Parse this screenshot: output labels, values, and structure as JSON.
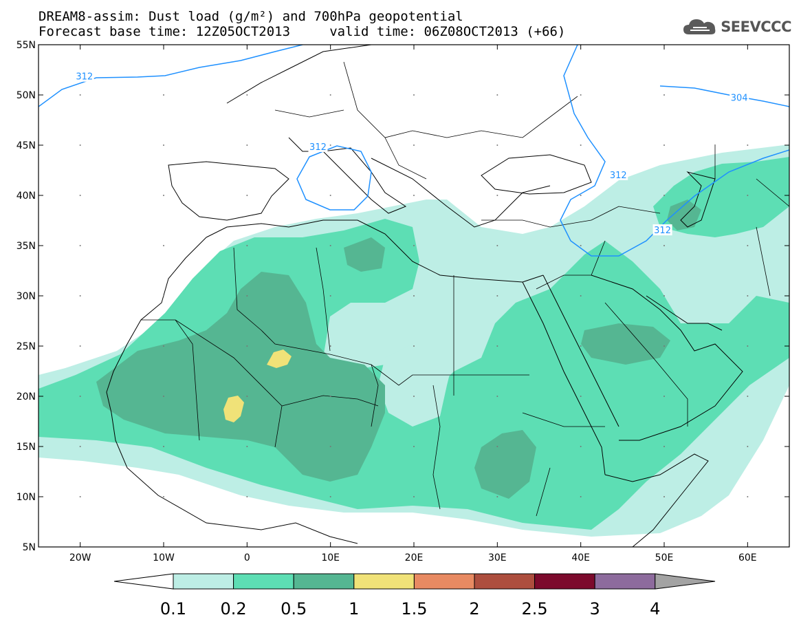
{
  "header": {
    "title_line1": "DREAM8-assim: Dust load (g/m²) and 700hPa geopotential",
    "title_line2": "Forecast base time: 12Z05OCT2013     valid time: 06Z08OCT2013 (+66)"
  },
  "logo": {
    "text": "SEEVCCC",
    "icon": "cloud-logo-icon"
  },
  "map": {
    "lon_range": [
      -25,
      65
    ],
    "lat_range": [
      5,
      55
    ],
    "lon_ticks": [
      {
        "value": -20,
        "label": "20W"
      },
      {
        "value": -10,
        "label": "10W"
      },
      {
        "value": 0,
        "label": "0"
      },
      {
        "value": 10,
        "label": "10E"
      },
      {
        "value": 20,
        "label": "20E"
      },
      {
        "value": 30,
        "label": "30E"
      },
      {
        "value": 40,
        "label": "40E"
      },
      {
        "value": 50,
        "label": "50E"
      },
      {
        "value": 60,
        "label": "60E"
      }
    ],
    "lat_ticks": [
      {
        "value": 55,
        "label": "55N"
      },
      {
        "value": 50,
        "label": "50N"
      },
      {
        "value": 45,
        "label": "45N"
      },
      {
        "value": 40,
        "label": "40N"
      },
      {
        "value": 35,
        "label": "35N"
      },
      {
        "value": 30,
        "label": "30N"
      },
      {
        "value": 25,
        "label": "25N"
      },
      {
        "value": 20,
        "label": "20N"
      },
      {
        "value": 15,
        "label": "15N"
      },
      {
        "value": 10,
        "label": "10N"
      },
      {
        "value": 5,
        "label": "5N"
      }
    ],
    "contour_labels": [
      {
        "text": "312",
        "lon": -19.5,
        "lat": 51.8
      },
      {
        "text": "312",
        "lon": 8.5,
        "lat": 44.8
      },
      {
        "text": "312",
        "lon": 44.5,
        "lat": 42.0
      },
      {
        "text": "312",
        "lon": 49.8,
        "lat": 36.5
      },
      {
        "text": "304",
        "lon": 59.0,
        "lat": 49.7
      }
    ]
  },
  "colorbar": {
    "levels": [
      "0.1",
      "0.2",
      "0.5",
      "1",
      "1.5",
      "2",
      "2.5",
      "3",
      "4"
    ],
    "colors": [
      "#bdeee5",
      "#5ddeb4",
      "#55b692",
      "#f0e278",
      "#e88a62",
      "#ad4e3e",
      "#7c0a2c",
      "#8d6b9d",
      "#a3a3a3"
    ]
  },
  "colors": {
    "contour": "#1e90ff",
    "grid_dots": "#777777"
  }
}
